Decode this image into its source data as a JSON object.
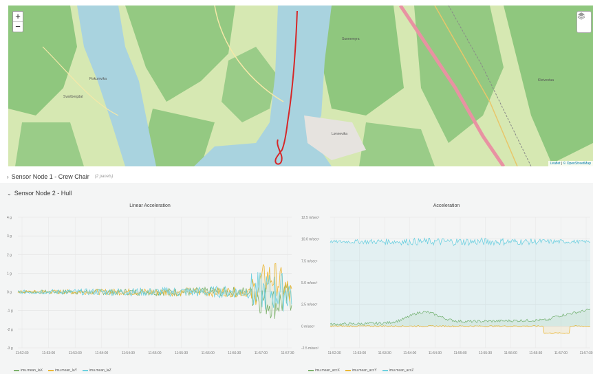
{
  "map": {
    "zoom_in": "+",
    "zoom_out": "−",
    "attribution_leaflet": "Leaflet",
    "attribution_osm": "© OpenStreetMap",
    "place_labels": [
      "Fiskumvika",
      "Svartbergdal",
      "Lønnevika",
      "Kleivestua",
      "Sunnemyra"
    ],
    "track_color": "#d62728"
  },
  "rows": {
    "row1": {
      "title": "Sensor Node 1 - Crew Chair",
      "subtitle": "(2 panels)",
      "chevron": "›"
    },
    "row2": {
      "title": "Sensor Node 2 - Hull",
      "chevron": "⌄"
    }
  },
  "chart_data": [
    {
      "type": "line",
      "title": "Linear Acceleration",
      "x": [
        "11:52:30",
        "11:53:00",
        "11:53:30",
        "11:54:00",
        "11:54:30",
        "11:55:00",
        "11:55:30",
        "11:56:00",
        "11:56:30",
        "11:57:00",
        "11:57:30"
      ],
      "y_ticks": [
        "4 g",
        "3 g",
        "2 g",
        "1 g",
        "0 g",
        "-1 g",
        "-2 g",
        "-3 g"
      ],
      "ylim": [
        -3,
        4
      ],
      "series": [
        {
          "name": "imu.mean_laX",
          "color": "#7eb26d"
        },
        {
          "name": "imu.mean_laY",
          "color": "#eab839"
        },
        {
          "name": "imu.mean_laZ",
          "color": "#6ed0e0"
        }
      ]
    },
    {
      "type": "line",
      "title": "Acceleration",
      "x": [
        "11:52:30",
        "11:53:00",
        "11:53:30",
        "11:54:00",
        "11:54:30",
        "11:55:00",
        "11:55:30",
        "11:56:00",
        "11:56:30",
        "11:57:00",
        "11:57:30"
      ],
      "y_ticks": [
        "12.5 m/sec²",
        "10.0 m/sec²",
        "7.5 m/sec²",
        "5.0 m/sec²",
        "2.5 m/sec²",
        "0 m/sec²",
        "-2.5 m/sec²"
      ],
      "ylim": [
        -2.5,
        12.5
      ],
      "series": [
        {
          "name": "imu.mean_accX",
          "color": "#7eb26d"
        },
        {
          "name": "imu.mean_accY",
          "color": "#eab839"
        },
        {
          "name": "imu.mean_accZ",
          "color": "#6ed0e0"
        }
      ]
    }
  ]
}
